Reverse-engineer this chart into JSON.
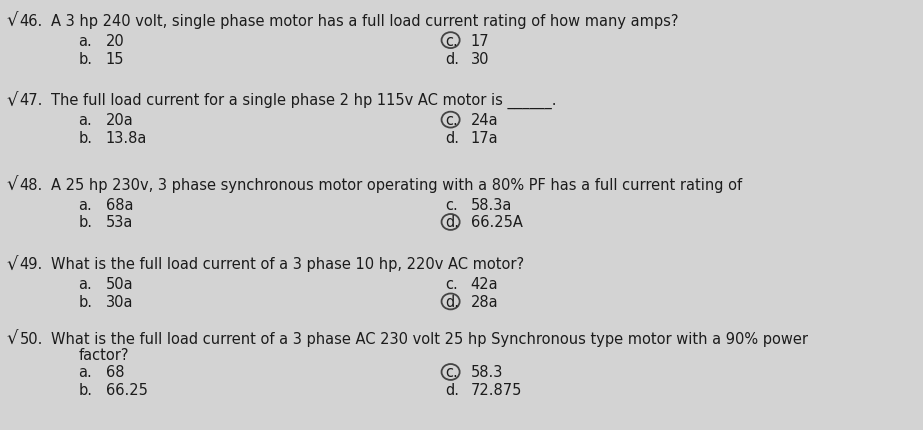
{
  "background_color": "#d3d3d3",
  "questions": [
    {
      "number": "46.",
      "text": "A 3 hp 240 volt, single phase motor has a full load current rating of how many amps?",
      "text2": null,
      "opt_a": "20",
      "opt_b": "15",
      "opt_c": "17",
      "opt_d": "30",
      "circle": "c"
    },
    {
      "number": "47.",
      "text": "The full load current for a single phase 2 hp 115v AC motor is ______.",
      "text2": null,
      "opt_a": "20a",
      "opt_b": "13.8a",
      "opt_c": "24a",
      "opt_d": "17a",
      "circle": "c"
    },
    {
      "number": "48.",
      "text": "A 25 hp 230v, 3 phase synchronous motor operating with a 80% PF has a full current rating of",
      "text2": null,
      "opt_a": "68a",
      "opt_b": "53a",
      "opt_c": "58.3a",
      "opt_d": "66.25A",
      "circle": "d"
    },
    {
      "number": "49.",
      "text": "What is the full load current of a 3 phase 10 hp, 220v AC motor?",
      "text2": null,
      "opt_a": "50a",
      "opt_b": "30a",
      "opt_c": "42a",
      "opt_d": "28a",
      "circle": "d"
    },
    {
      "number": "50.",
      "text": "What is the full load current of a 3 phase AC 230 volt 25 hp Synchronous type motor with a 90% power",
      "text2": "factor?",
      "opt_a": "68",
      "opt_b": "66.25",
      "opt_c": "58.3",
      "opt_d": "72.875",
      "circle": "c"
    }
  ],
  "font_size": 10.5,
  "text_color": "#1c1c1c",
  "circle_color": "#444444",
  "sqrt_fontsize": 13
}
